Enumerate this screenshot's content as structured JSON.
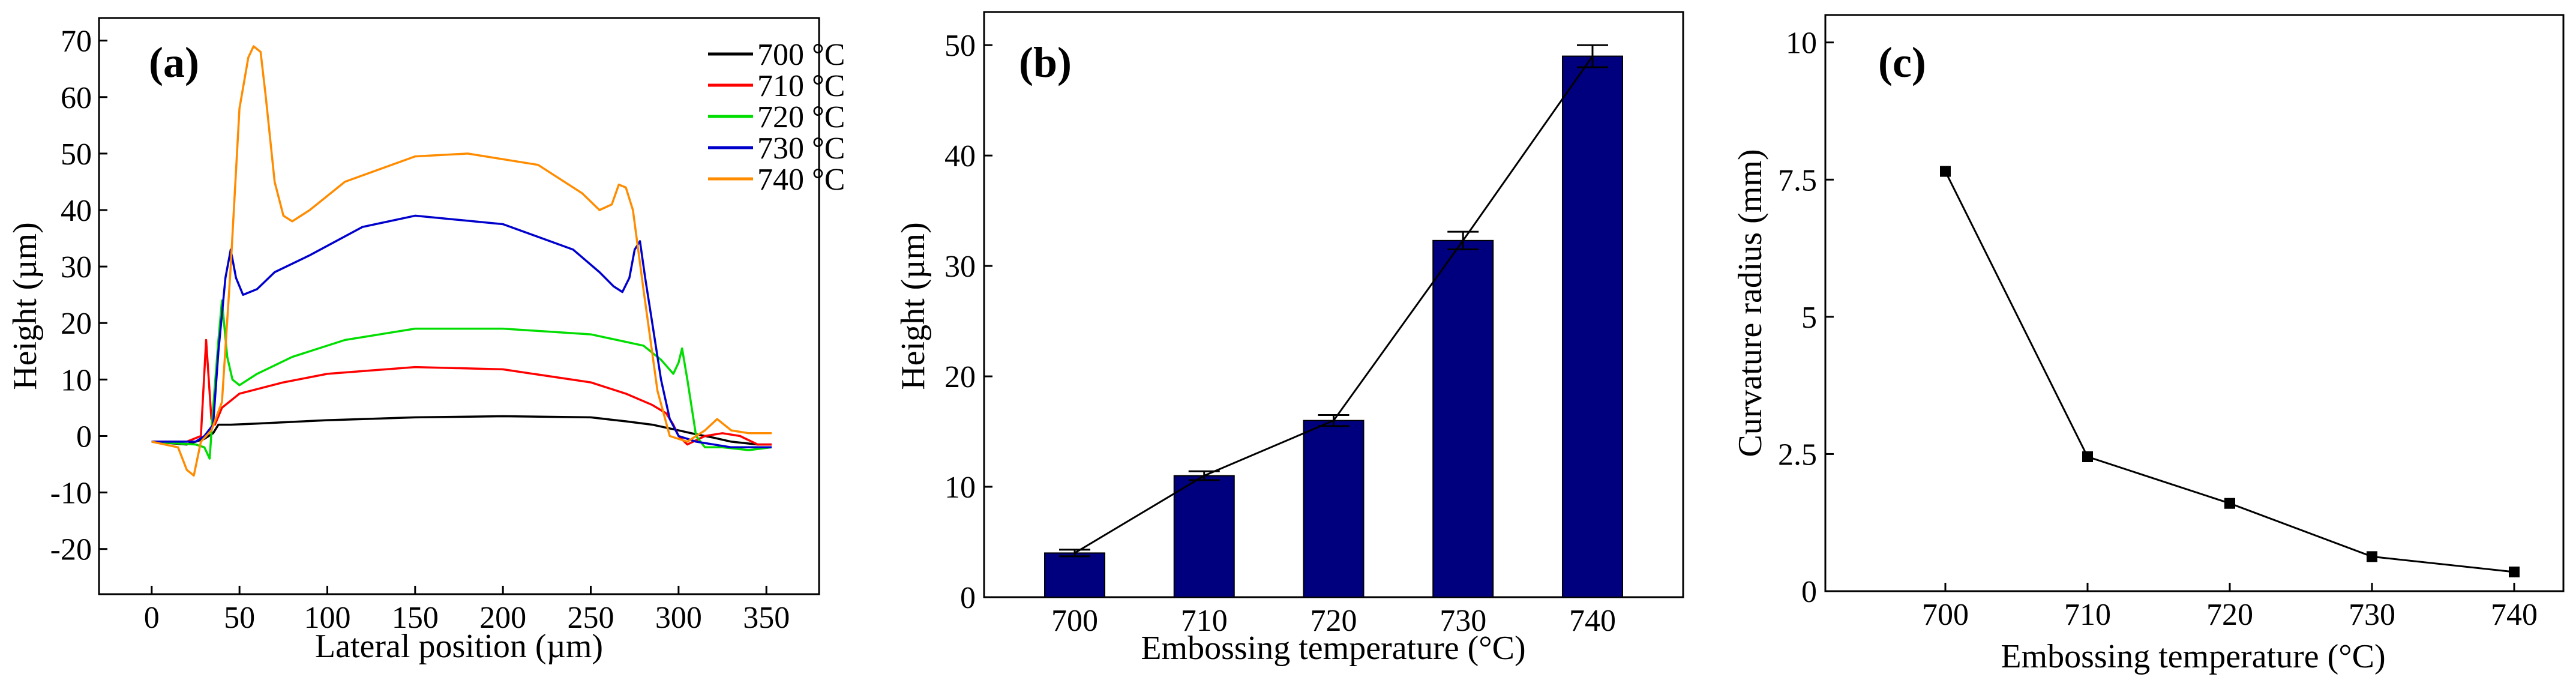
{
  "chart_data": [
    {
      "panel_label": "(a)",
      "type": "line",
      "xlabel": "Lateral position (µm)",
      "ylabel": "Height (µm)",
      "xlim": [
        -30,
        380
      ],
      "ylim": [
        -28,
        74
      ],
      "xticks": [
        0,
        50,
        100,
        150,
        200,
        250,
        300,
        350
      ],
      "yticks": [
        -20,
        -10,
        0,
        10,
        20,
        30,
        40,
        50,
        60,
        70
      ],
      "xtick_labels": [
        "0",
        "50",
        "100",
        "150",
        "200",
        "250",
        "300",
        "350"
      ],
      "ytick_labels": [
        "-20",
        "-10",
        "0",
        "10",
        "20",
        "30",
        "40",
        "50",
        "60",
        "70"
      ],
      "legend_position": "top-right",
      "series": [
        {
          "name": "700 °C",
          "color": "#000000",
          "points": [
            [
              0,
              -1
            ],
            [
              20,
              -1.5
            ],
            [
              30,
              -0.5
            ],
            [
              35,
              0.5
            ],
            [
              38,
              2
            ],
            [
              45,
              2
            ],
            [
              60,
              2.2
            ],
            [
              100,
              2.8
            ],
            [
              150,
              3.3
            ],
            [
              200,
              3.5
            ],
            [
              250,
              3.3
            ],
            [
              270,
              2.6
            ],
            [
              285,
              2
            ],
            [
              300,
              1
            ],
            [
              310,
              0.3
            ],
            [
              320,
              -0.3
            ],
            [
              330,
              -1
            ],
            [
              345,
              -1.5
            ],
            [
              353,
              -1.5
            ]
          ]
        },
        {
          "name": "710 °C",
          "color": "#ff0000",
          "points": [
            [
              0,
              -1
            ],
            [
              20,
              -1
            ],
            [
              28,
              0
            ],
            [
              31,
              17
            ],
            [
              34,
              3
            ],
            [
              36,
              2
            ],
            [
              40,
              5
            ],
            [
              50,
              7.5
            ],
            [
              75,
              9.5
            ],
            [
              100,
              11
            ],
            [
              150,
              12.2
            ],
            [
              200,
              11.8
            ],
            [
              250,
              9.5
            ],
            [
              270,
              7.5
            ],
            [
              285,
              5.5
            ],
            [
              293,
              4
            ],
            [
              297,
              2
            ],
            [
              300,
              0
            ],
            [
              305,
              -1.5
            ],
            [
              315,
              0
            ],
            [
              325,
              0.5
            ],
            [
              335,
              0
            ],
            [
              345,
              -1.5
            ],
            [
              353,
              -1.5
            ]
          ]
        },
        {
          "name": "720 °C",
          "color": "#00dd00",
          "points": [
            [
              0,
              -1
            ],
            [
              25,
              -1.5
            ],
            [
              30,
              -2
            ],
            [
              33,
              -4
            ],
            [
              35,
              5
            ],
            [
              38,
              17
            ],
            [
              40,
              24
            ],
            [
              43,
              14
            ],
            [
              46,
              10
            ],
            [
              50,
              9
            ],
            [
              60,
              11
            ],
            [
              80,
              14
            ],
            [
              110,
              17
            ],
            [
              150,
              19
            ],
            [
              200,
              19
            ],
            [
              250,
              18
            ],
            [
              280,
              16
            ],
            [
              290,
              13.5
            ],
            [
              297,
              11
            ],
            [
              300,
              13
            ],
            [
              302,
              15.5
            ],
            [
              305,
              10
            ],
            [
              310,
              0
            ],
            [
              315,
              -2
            ],
            [
              325,
              -2
            ],
            [
              340,
              -2.5
            ],
            [
              353,
              -2
            ]
          ]
        },
        {
          "name": "730 °C",
          "color": "#0000cc",
          "points": [
            [
              0,
              -1
            ],
            [
              25,
              -1
            ],
            [
              30,
              0
            ],
            [
              35,
              2
            ],
            [
              38,
              15
            ],
            [
              42,
              28
            ],
            [
              45,
              33
            ],
            [
              48,
              28
            ],
            [
              52,
              25
            ],
            [
              60,
              26
            ],
            [
              70,
              29
            ],
            [
              90,
              32
            ],
            [
              120,
              37
            ],
            [
              150,
              39
            ],
            [
              200,
              37.5
            ],
            [
              240,
              33
            ],
            [
              255,
              29
            ],
            [
              263,
              26.5
            ],
            [
              268,
              25.5
            ],
            [
              272,
              28
            ],
            [
              275,
              33
            ],
            [
              278,
              34.5
            ],
            [
              281,
              28
            ],
            [
              285,
              20
            ],
            [
              290,
              10
            ],
            [
              295,
              3
            ],
            [
              300,
              0
            ],
            [
              310,
              -1
            ],
            [
              330,
              -2
            ],
            [
              353,
              -2
            ]
          ]
        },
        {
          "name": "740 °C",
          "color": "#ff8c00",
          "points": [
            [
              0,
              -1
            ],
            [
              15,
              -2
            ],
            [
              20,
              -6
            ],
            [
              24,
              -7
            ],
            [
              28,
              -1
            ],
            [
              34,
              1
            ],
            [
              40,
              6
            ],
            [
              45,
              30
            ],
            [
              50,
              58
            ],
            [
              55,
              67
            ],
            [
              58,
              69
            ],
            [
              62,
              68
            ],
            [
              65,
              60
            ],
            [
              70,
              45
            ],
            [
              75,
              39
            ],
            [
              80,
              38
            ],
            [
              90,
              40
            ],
            [
              110,
              45
            ],
            [
              150,
              49.5
            ],
            [
              180,
              50
            ],
            [
              220,
              48
            ],
            [
              245,
              43
            ],
            [
              255,
              40
            ],
            [
              262,
              41
            ],
            [
              266,
              44.5
            ],
            [
              270,
              44
            ],
            [
              274,
              40
            ],
            [
              280,
              26
            ],
            [
              288,
              8
            ],
            [
              295,
              0
            ],
            [
              305,
              -1
            ],
            [
              315,
              1
            ],
            [
              322,
              3
            ],
            [
              330,
              1
            ],
            [
              340,
              0.5
            ],
            [
              353,
              0.5
            ]
          ]
        }
      ]
    },
    {
      "panel_label": "(b)",
      "type": "bar",
      "xlabel": "Embossing temperature (°C)",
      "ylabel": "Height (µm)",
      "categories": [
        "700",
        "710",
        "720",
        "730",
        "740"
      ],
      "values": [
        4.0,
        11.0,
        16.0,
        32.3,
        49.0
      ],
      "errors": [
        0.3,
        0.4,
        0.5,
        0.8,
        1.0
      ],
      "ylim": [
        0,
        53
      ],
      "yticks": [
        0,
        10,
        20,
        30,
        40,
        50
      ],
      "ytick_labels": [
        "0",
        "10",
        "20",
        "30",
        "40",
        "50"
      ],
      "bar_color": "#00007f",
      "line_through_tops": true
    },
    {
      "panel_label": "(c)",
      "type": "line",
      "xlabel": "Embossing temperature (°C)",
      "ylabel": "Curvature radius (mm)",
      "categories": [
        "700",
        "710",
        "720",
        "730",
        "740"
      ],
      "values": [
        7.65,
        2.45,
        1.6,
        0.63,
        0.35
      ],
      "ylim": [
        0,
        10.5
      ],
      "yticks": [
        0,
        2.5,
        5,
        7.5,
        10
      ],
      "ytick_labels": [
        "0",
        "2.5",
        "5",
        "7.5",
        "10"
      ],
      "marker": "square"
    }
  ]
}
